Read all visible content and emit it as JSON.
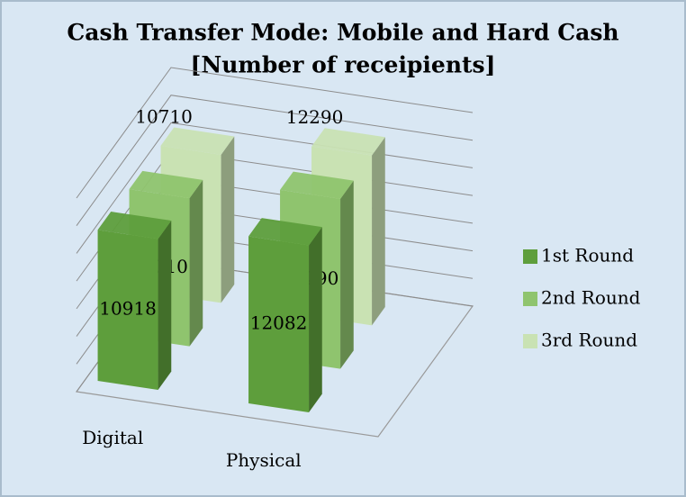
{
  "chart_data": {
    "type": "bar3d",
    "title": "Cash Transfer Mode:  Mobile and Hard Cash",
    "subtitle": "[Number of receipients]",
    "categories": [
      "Digital",
      "Physical"
    ],
    "series": [
      {
        "name": "1st Round",
        "color": "#5e9e3c",
        "values": [
          10918,
          12082
        ]
      },
      {
        "name": "2nd Round",
        "color": "#8fc46e",
        "values": [
          10710,
          12290
        ]
      },
      {
        "name": "3rd Round",
        "color": "#c9e2b3",
        "values": [
          10710,
          12290
        ]
      }
    ],
    "ylim": [
      0,
      14000
    ],
    "yticks": [
      0,
      2000,
      4000,
      6000,
      8000,
      10000,
      12000,
      14000
    ],
    "grid": true,
    "legend": "right"
  }
}
